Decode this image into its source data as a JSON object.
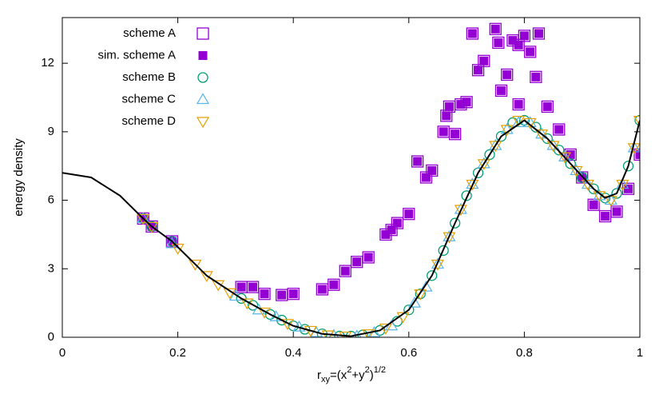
{
  "chart_data": {
    "type": "scatter",
    "ylabel": "energy density",
    "xlabel": [
      "r",
      "xy",
      "=(x",
      "2",
      "+y",
      "2",
      ")",
      "1/2"
    ],
    "xlim": [
      0,
      1
    ],
    "ylim": [
      0,
      14
    ],
    "xticks": [
      0,
      0.2,
      0.4,
      0.6,
      0.8,
      1
    ],
    "yticks": [
      0,
      3,
      6,
      9,
      12
    ],
    "legend": "top-left",
    "curve": {
      "color": "#000000",
      "x": [
        0,
        0.05,
        0.1,
        0.14,
        0.155,
        0.19,
        0.25,
        0.31,
        0.36,
        0.4,
        0.45,
        0.5,
        0.55,
        0.6,
        0.64,
        0.68,
        0.72,
        0.76,
        0.8,
        0.84,
        0.88,
        0.92,
        0.94,
        0.96,
        0.98,
        1
      ],
      "values": [
        7.2,
        7.0,
        6.2,
        5.2,
        4.85,
        4.2,
        2.7,
        1.7,
        1.0,
        0.5,
        0.15,
        0.05,
        0.3,
        1.2,
        2.7,
        5.0,
        7.2,
        8.8,
        9.5,
        8.7,
        7.6,
        6.5,
        6.1,
        6.3,
        7.5,
        9.5
      ]
    },
    "series": [
      {
        "name": "scheme A",
        "marker": "open-square",
        "color": "#9400d3",
        "x": [
          0.14,
          0.155,
          0.19,
          0.31,
          0.33,
          0.35,
          0.38,
          0.4,
          0.45,
          0.47,
          0.49,
          0.51,
          0.53,
          0.56,
          0.57,
          0.58,
          0.6,
          0.615,
          0.63,
          0.64,
          0.66,
          0.665,
          0.67,
          0.68,
          0.69,
          0.7,
          0.71,
          0.72,
          0.73,
          0.75,
          0.755,
          0.76,
          0.77,
          0.78,
          0.79,
          0.79,
          0.8,
          0.81,
          0.82,
          0.825,
          0.84,
          0.86,
          0.88,
          0.9,
          0.92,
          0.94,
          0.96,
          0.98,
          1
        ],
        "values": [
          5.2,
          4.85,
          4.2,
          2.2,
          2.2,
          1.9,
          1.85,
          1.9,
          2.1,
          2.3,
          2.9,
          3.3,
          3.5,
          4.5,
          4.7,
          5.0,
          5.4,
          7.7,
          7.0,
          7.3,
          9.0,
          9.7,
          10.1,
          8.9,
          10.2,
          10.3,
          13.3,
          11.7,
          12.1,
          13.5,
          12.9,
          10.8,
          11.5,
          13.0,
          12.8,
          10.2,
          13.2,
          12.5,
          11.4,
          13.3,
          10.1,
          9.1,
          8.0,
          7.0,
          5.8,
          5.3,
          5.5,
          6.5,
          8.0
        ]
      },
      {
        "name": "sim. scheme A",
        "marker": "filled-square",
        "color": "#9400d3",
        "x": [
          0.14,
          0.155,
          0.19,
          0.31,
          0.33,
          0.35,
          0.38,
          0.4,
          0.45,
          0.47,
          0.49,
          0.51,
          0.53,
          0.56,
          0.57,
          0.58,
          0.6,
          0.615,
          0.63,
          0.64,
          0.66,
          0.665,
          0.67,
          0.68,
          0.69,
          0.7,
          0.71,
          0.72,
          0.73,
          0.75,
          0.755,
          0.76,
          0.77,
          0.78,
          0.79,
          0.79,
          0.8,
          0.81,
          0.82,
          0.825,
          0.84,
          0.86,
          0.88,
          0.9,
          0.92,
          0.94,
          0.96,
          0.98,
          1
        ],
        "values": [
          5.2,
          4.85,
          4.2,
          2.2,
          2.2,
          1.9,
          1.85,
          1.9,
          2.1,
          2.3,
          2.9,
          3.3,
          3.5,
          4.5,
          4.7,
          5.0,
          5.4,
          7.7,
          7.0,
          7.3,
          9.0,
          9.7,
          10.1,
          8.9,
          10.2,
          10.3,
          13.3,
          11.7,
          12.1,
          13.5,
          12.9,
          10.8,
          11.5,
          13.0,
          12.8,
          10.2,
          13.2,
          12.5,
          11.4,
          13.3,
          10.1,
          9.1,
          8.0,
          7.0,
          5.8,
          5.3,
          5.5,
          6.5,
          8.0
        ]
      },
      {
        "name": "scheme B",
        "marker": "circle",
        "color": "#009e73",
        "x": [
          0.14,
          0.155,
          0.19,
          0.31,
          0.33,
          0.36,
          0.38,
          0.4,
          0.42,
          0.45,
          0.48,
          0.5,
          0.52,
          0.55,
          0.58,
          0.6,
          0.62,
          0.64,
          0.66,
          0.68,
          0.7,
          0.72,
          0.74,
          0.76,
          0.78,
          0.8,
          0.82,
          0.84,
          0.86,
          0.88,
          0.9,
          0.92,
          0.94,
          0.96,
          0.98,
          1
        ],
        "values": [
          5.2,
          4.85,
          4.2,
          1.7,
          1.4,
          1.0,
          0.75,
          0.5,
          0.35,
          0.15,
          0.05,
          0.05,
          0.1,
          0.3,
          0.7,
          1.2,
          1.9,
          2.7,
          3.8,
          5.0,
          6.2,
          7.2,
          8.0,
          8.8,
          9.4,
          9.5,
          9.2,
          8.7,
          8.2,
          7.6,
          7.0,
          6.5,
          6.1,
          6.3,
          7.5,
          9.5
        ]
      },
      {
        "name": "scheme C",
        "marker": "triangle",
        "color": "#56b4e9",
        "x": [
          0.14,
          0.19,
          0.3,
          0.34,
          0.37,
          0.41,
          0.44,
          0.47,
          0.51,
          0.54,
          0.57,
          0.61,
          0.63,
          0.65,
          0.67,
          0.69,
          0.71,
          0.73,
          0.75,
          0.77,
          0.79,
          0.81,
          0.83,
          0.85,
          0.87,
          0.89,
          0.91,
          0.93,
          0.95,
          0.97,
          0.99
        ],
        "values": [
          5.2,
          4.1,
          1.8,
          1.2,
          0.9,
          0.45,
          0.2,
          0.08,
          0.05,
          0.2,
          0.5,
          1.5,
          2.2,
          3.2,
          4.4,
          5.6,
          6.7,
          7.6,
          8.4,
          9.1,
          9.4,
          9.4,
          8.9,
          8.4,
          7.9,
          7.3,
          6.7,
          6.2,
          6.0,
          6.7,
          8.3
        ]
      },
      {
        "name": "scheme D",
        "marker": "inverted-triangle",
        "color": "#e69f00",
        "x": [
          0.14,
          0.155,
          0.2,
          0.23,
          0.25,
          0.27,
          0.29,
          0.32,
          0.35,
          0.39,
          0.43,
          0.46,
          0.49,
          0.53,
          0.56,
          0.59,
          0.62,
          0.65,
          0.67,
          0.69,
          0.71,
          0.73,
          0.75,
          0.77,
          0.79,
          0.81,
          0.83,
          0.85,
          0.87,
          0.89,
          0.91,
          0.93,
          0.95,
          0.97,
          0.99,
          1
        ],
        "values": [
          5.2,
          4.85,
          3.9,
          3.2,
          2.7,
          2.3,
          1.95,
          1.5,
          1.1,
          0.6,
          0.3,
          0.1,
          0.05,
          0.15,
          0.4,
          0.9,
          1.9,
          3.2,
          4.4,
          5.6,
          6.7,
          7.6,
          8.4,
          9.1,
          9.5,
          9.4,
          8.9,
          8.4,
          7.9,
          7.3,
          6.7,
          6.2,
          6.0,
          6.7,
          8.3,
          9.5
        ]
      }
    ]
  }
}
